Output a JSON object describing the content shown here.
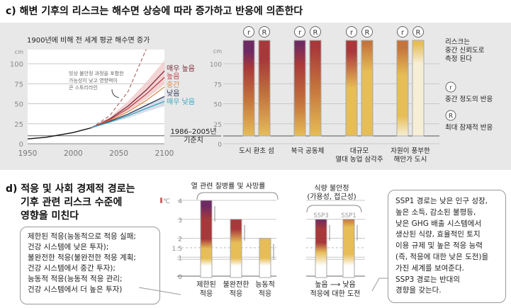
{
  "panel_c": {
    "title": "c) 해변 기후의 리스크는 해수면 상승에 따라 증가하고 반응에 의존한다"
  },
  "panel_d": {
    "title_lines": [
      "d) 적응 및 사회 경제적 경로는",
      "기후 관련 리스크 수준에",
      "영향을 미친다"
    ],
    "left_note": [
      "제한된 적응(능동적으로 적응 실패;",
      "건강 시스템에 낮은 투자);",
      "불완전한 적응(불완전한 적응 계획;",
      "건강 시스템에서 중간 투자);",
      "능동적 적응(능동적 적응 관리;",
      "건강 시스템에서 더 높은 투자)"
    ],
    "right_note": [
      "SSP1 경로는 낮은 인구 성장,",
      "높은 소득, 감소된 불평등,",
      "낮은 GHG 배출 시스템에서",
      "생산된 식량, 효율적인 토지",
      "이용 규제 및 높은 적응 능력",
      "(즉, 적응에 대한 낮은 도전)을",
      "가진 세계를 보여준다.",
      "SSP3 경로는 반대의",
      "경향을 갖는다."
    ]
  },
  "colors": {
    "purple": "#6e2a63",
    "red": "#a8383a",
    "orange": "#c4743c",
    "yellow": "#e6bd57",
    "pale": "#f6efd6",
    "white": "#ffffff"
  },
  "chart_data": [
    {
      "type": "line",
      "title": "1900년에 비해 전 세계 평균 해수면 증가",
      "ylabel": "cm",
      "xlim": [
        1950,
        2100
      ],
      "ylim": [
        0,
        118
      ],
      "xticks": [
        "1950",
        "2000",
        "2050",
        "2100"
      ],
      "yticks": [
        "0",
        "25",
        "50",
        "75",
        "100"
      ],
      "grid": true,
      "reference_line": {
        "value": 10,
        "label_lines": [
          "1986–2005년",
          "기준치"
        ]
      },
      "x": [
        2020,
        2040,
        2060,
        2080,
        2100
      ],
      "observed": {
        "x": [
          1950,
          1960,
          1970,
          1980,
          1990,
          2000,
          2010,
          2020
        ],
        "y": [
          6,
          7,
          8,
          10,
          12,
          14,
          17,
          20
        ]
      },
      "series": [
        {
          "name": "매우 높음",
          "color": "#7a2a3a",
          "values": [
            20,
            31,
            47,
            67,
            91
          ]
        },
        {
          "name": "높음",
          "color": "#c0404a",
          "values": [
            20,
            30,
            44,
            62,
            83
          ]
        },
        {
          "name": "중간",
          "color": "#e08a4a",
          "values": [
            20,
            29,
            40,
            54,
            71
          ]
        },
        {
          "name": "낮음",
          "color": "#2e3a5c",
          "values": [
            20,
            28,
            37,
            48,
            59
          ]
        },
        {
          "name": "매우 낮음",
          "color": "#3aa6c0",
          "values": [
            20,
            27,
            35,
            44,
            53
          ]
        }
      ],
      "bands": [
        {
          "color": "#f0c8c8",
          "lower": [
            20,
            29,
            41,
            56,
            74
          ],
          "upper": [
            20,
            33,
            53,
            77,
            104
          ]
        },
        {
          "color": "#cfd6e4",
          "lower": [
            20,
            26,
            32,
            40,
            47
          ],
          "upper": [
            20,
            28,
            37,
            48,
            60
          ]
        }
      ],
      "dashed": {
        "x": [
          2020,
          2040,
          2060,
          2080
        ],
        "values": [
          20,
          35,
          65,
          118
        ]
      },
      "annotation": [
        "빙상 불안정 과정을 포함한",
        "가능성이 낮고 영향력이",
        "큰 스토리라인"
      ]
    },
    {
      "type": "bar",
      "ylabel": "cm",
      "yticks": [
        "0",
        "25",
        "50",
        "75",
        "100"
      ],
      "categories": [
        [
          "도시 환초 섬"
        ],
        [
          "북극 공동체"
        ],
        [
          "대규모",
          "열대 농업 삼각주"
        ],
        [
          "자원이 풍부한",
          "해안가 도시"
        ]
      ],
      "response_labels": [
        "r",
        "R"
      ],
      "legend": {
        "title": [
          "리스크는",
          "중간 신뢰도로",
          "측정 된다"
        ],
        "items": [
          {
            "symbol": "r",
            "label": "중간 정도의 반응"
          },
          {
            "symbol": "R",
            "label": "최대 잠재적 반응"
          }
        ]
      },
      "bars": [
        [
          {
            "stops": [
              [
                10,
                "yellow"
              ],
              [
                55,
                "orange"
              ],
              [
                95,
                "red"
              ],
              [
                115,
                "purple"
              ]
            ]
          },
          {
            "stops": [
              [
                10,
                "yellow"
              ],
              [
                60,
                "orange"
              ],
              [
                105,
                "red"
              ],
              [
                129,
                "red"
              ]
            ]
          }
        ],
        [
          {
            "stops": [
              [
                10,
                "yellow"
              ],
              [
                50,
                "orange"
              ],
              [
                100,
                "red"
              ],
              [
                125,
                "purple"
              ]
            ]
          },
          {
            "stops": [
              [
                10,
                "yellow"
              ],
              [
                70,
                "orange"
              ],
              [
                120,
                "red"
              ]
            ]
          }
        ],
        [
          {
            "stops": [
              [
                10,
                "yellow"
              ],
              [
                70,
                "yellow"
              ],
              [
                115,
                "red"
              ]
            ]
          },
          {
            "stops": [
              [
                10,
                "yellow"
              ],
              [
                90,
                "yellow"
              ],
              [
                125,
                "orange"
              ]
            ]
          }
        ],
        [
          {
            "stops": [
              [
                10,
                "pale"
              ],
              [
                35,
                "yellow"
              ],
              [
                85,
                "yellow"
              ],
              [
                120,
                "orange"
              ]
            ]
          },
          {
            "stops": [
              [
                10,
                "pale"
              ],
              [
                100,
                "pale"
              ],
              [
                125,
                "yellow"
              ]
            ]
          }
        ]
      ]
    },
    {
      "type": "bar",
      "title": "열 관련 질병률 및 사망률",
      "ylabel": "℃",
      "yticks": [
        "0",
        "1",
        "1.5",
        "2",
        "3",
        "4"
      ],
      "categories": [
        [
          "제한된",
          "적응"
        ],
        [
          "불완전한",
          "적응"
        ],
        [
          "능동적",
          "적응"
        ]
      ],
      "values": [
        4,
        3,
        2
      ],
      "bars": [
        {
          "stops": [
            [
              0,
              "white"
            ],
            [
              0.6,
              "white"
            ],
            [
              1.0,
              "yellow"
            ],
            [
              1.5,
              "yellow"
            ],
            [
              2.0,
              "red"
            ],
            [
              3.0,
              "red"
            ],
            [
              3.7,
              "purple"
            ]
          ]
        },
        {
          "stops": [
            [
              0,
              "white"
            ],
            [
              0.6,
              "white"
            ],
            [
              1.0,
              "yellow"
            ],
            [
              1.8,
              "yellow"
            ],
            [
              2.5,
              "red"
            ],
            [
              3.0,
              "red"
            ]
          ]
        },
        {
          "stops": [
            [
              0,
              "white"
            ],
            [
              0.6,
              "white"
            ],
            [
              1.0,
              "yellow"
            ],
            [
              2.0,
              "yellow"
            ]
          ]
        }
      ]
    },
    {
      "type": "bar",
      "title": [
        "식량 불안정",
        "(가용성, 접근성)"
      ],
      "categories": [
        "SSP3",
        "SSP1"
      ],
      "values": [
        3,
        3
      ],
      "xlabel": [
        "높음 ⟶ 낮음",
        "적응에 대한 도전"
      ],
      "bars": [
        {
          "stops": [
            [
              0,
              "white"
            ],
            [
              0.6,
              "white"
            ],
            [
              1.3,
              "yellow"
            ],
            [
              1.8,
              "red"
            ],
            [
              2.5,
              "red"
            ],
            [
              3.0,
              "purple"
            ]
          ]
        },
        {
          "stops": [
            [
              0,
              "white"
            ],
            [
              0.6,
              "white"
            ],
            [
              1.2,
              "yellow"
            ],
            [
              2.6,
              "yellow"
            ],
            [
              3.0,
              "orange"
            ]
          ]
        }
      ]
    }
  ]
}
